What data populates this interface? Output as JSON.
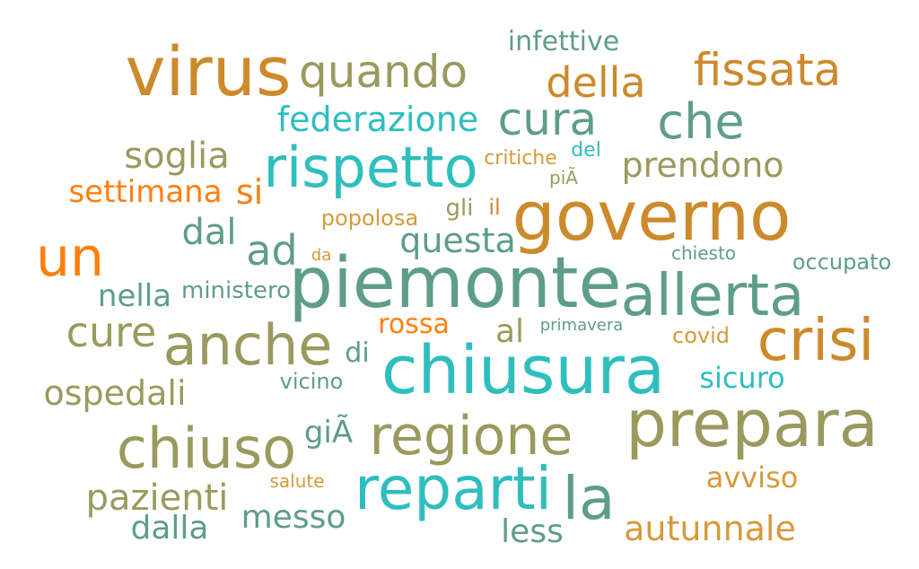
{
  "colors": {
    "olive": "#9A9A5E",
    "teal": "#2FBEBE",
    "sage": "#5E9E86",
    "ochre": "#CC8A2C",
    "orange": "#FF7F0E",
    "mustard": "#D69A3A"
  },
  "words": [
    {
      "text": "virus",
      "color": "#CC8A2C"
    },
    {
      "text": "quando",
      "color": "#9A9A5E"
    },
    {
      "text": "infettive",
      "color": "#5E9E86"
    },
    {
      "text": "della",
      "color": "#CC8A2C"
    },
    {
      "text": "fissata",
      "color": "#CC8A2C"
    },
    {
      "text": "federazione",
      "color": "#2FBEBE"
    },
    {
      "text": "cura",
      "color": "#5E9E86"
    },
    {
      "text": "che",
      "color": "#5E9E86"
    },
    {
      "text": "soglia",
      "color": "#9A9A5E"
    },
    {
      "text": "rispetto",
      "color": "#2FBEBE"
    },
    {
      "text": "critiche",
      "color": "#D69A3A"
    },
    {
      "text": "del",
      "color": "#2FBEBE"
    },
    {
      "text": "piÃ",
      "color": "#9A9A5E"
    },
    {
      "text": "prendono",
      "color": "#9A9A5E"
    },
    {
      "text": "settimana",
      "color": "#FF7F0E"
    },
    {
      "text": "si",
      "color": "#FF7F0E"
    },
    {
      "text": "popolosa",
      "color": "#D69A3A"
    },
    {
      "text": "gli",
      "color": "#9A9A5E"
    },
    {
      "text": "il",
      "color": "#CC8A2C"
    },
    {
      "text": "governo",
      "color": "#CC8A2C"
    },
    {
      "text": "dal",
      "color": "#5E9E86"
    },
    {
      "text": "ad",
      "color": "#5E9E86"
    },
    {
      "text": "questa",
      "color": "#5E9E86"
    },
    {
      "text": "un",
      "color": "#FF7F0E"
    },
    {
      "text": "da",
      "color": "#D69A3A"
    },
    {
      "text": "piemonte",
      "color": "#5E9E86"
    },
    {
      "text": "chiesto",
      "color": "#5E9E86"
    },
    {
      "text": "occupato",
      "color": "#5E9E86"
    },
    {
      "text": "allerta",
      "color": "#5E9E86"
    },
    {
      "text": "nella",
      "color": "#5E9E86"
    },
    {
      "text": "ministero",
      "color": "#5E9E86"
    },
    {
      "text": "rossa",
      "color": "#FF7F0E"
    },
    {
      "text": "primavera",
      "color": "#5E9E86"
    },
    {
      "text": "cure",
      "color": "#9A9A5E"
    },
    {
      "text": "anche",
      "color": "#9A9A5E"
    },
    {
      "text": "al",
      "color": "#9A9A5E"
    },
    {
      "text": "covid",
      "color": "#D69A3A"
    },
    {
      "text": "crisi",
      "color": "#CC8A2C"
    },
    {
      "text": "di",
      "color": "#5E9E86"
    },
    {
      "text": "chiusura",
      "color": "#2FBEBE"
    },
    {
      "text": "vicino",
      "color": "#5E9E86"
    },
    {
      "text": "sicuro",
      "color": "#2FBEBE"
    },
    {
      "text": "ospedali",
      "color": "#9A9A5E"
    },
    {
      "text": "prepara",
      "color": "#9A9A5E"
    },
    {
      "text": "giÃ",
      "color": "#5E9E86"
    },
    {
      "text": "regione",
      "color": "#9A9A5E"
    },
    {
      "text": "chiuso",
      "color": "#9A9A5E"
    },
    {
      "text": "avviso",
      "color": "#D69A3A"
    },
    {
      "text": "salute",
      "color": "#D69A3A"
    },
    {
      "text": "reparti",
      "color": "#2FBEBE"
    },
    {
      "text": "la",
      "color": "#5E9E86"
    },
    {
      "text": "pazienti",
      "color": "#9A9A5E"
    },
    {
      "text": "messo",
      "color": "#5E9E86"
    },
    {
      "text": "dalla",
      "color": "#5E9E86"
    },
    {
      "text": "less",
      "color": "#5E9E86"
    },
    {
      "text": "autunnale",
      "color": "#D69A3A"
    }
  ]
}
